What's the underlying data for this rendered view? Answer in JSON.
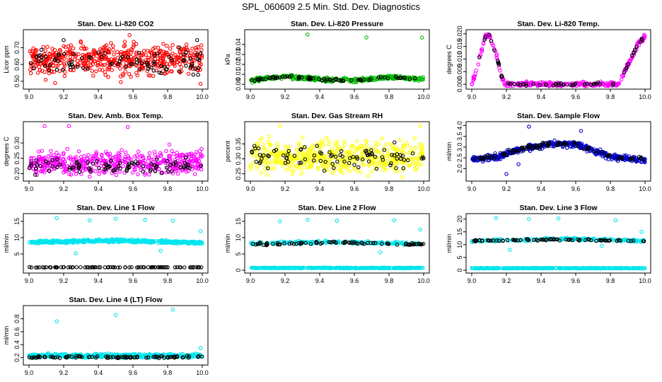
{
  "title": "SPL_060609  2.5 Min. Std. Dev. Diagnostics",
  "chart_data": [
    {
      "type": "scatter",
      "title": "Stan. Dev. Li-820 CO2",
      "ylabel": "Licor ppm",
      "xlim": [
        9.0,
        10.0
      ],
      "ylim": [
        0.47,
        0.79
      ],
      "xticks": [
        "9.0",
        "9.2",
        "9.4",
        "9.6",
        "9.8",
        "10.0"
      ],
      "yticks": [
        0.5,
        0.6,
        0.7
      ],
      "ytick_labels": [
        "0.50",
        "0.60",
        "0.70"
      ],
      "series": [
        {
          "name": "primary",
          "color": "#ff0000",
          "pattern": "noise",
          "base": 0.63,
          "spread": 0.075,
          "n": 520,
          "outliers": [
            [
              9.15,
              0.49
            ],
            [
              9.53,
              0.495
            ],
            [
              9.99,
              0.485
            ],
            [
              9.58,
              0.775
            ]
          ]
        },
        {
          "name": "secondary",
          "color": "#000000",
          "pattern": "noise",
          "base": 0.62,
          "spread": 0.06,
          "n": 90,
          "outliers": [
            [
              9.2,
              0.745
            ],
            [
              9.97,
              0.745
            ]
          ]
        }
      ]
    },
    {
      "type": "scatter",
      "title": "Stan. Dev. Li-820 Pressure",
      "ylabel": "kPa",
      "xlim": [
        9.0,
        10.0
      ],
      "ylim": [
        -0.002,
        0.052
      ],
      "xticks": [
        "9.0",
        "9.2",
        "9.4",
        "9.6",
        "9.8",
        "10.0"
      ],
      "yticks": [
        0.0,
        0.01,
        0.02,
        0.03,
        0.04
      ],
      "ytick_labels": [
        "0.00",
        "0.01",
        "0.02",
        "0.03",
        "0.04"
      ],
      "series": [
        {
          "name": "primary",
          "color": "#00bb00",
          "pattern": "wave",
          "points": [
            [
              9.0,
              0.004
            ],
            [
              9.2,
              0.008
            ],
            [
              9.4,
              0.005
            ],
            [
              9.6,
              0.004
            ],
            [
              9.8,
              0.007
            ],
            [
              10.0,
              0.005
            ]
          ],
          "spread": 0.0018,
          "n": 360,
          "outliers": [
            [
              9.33,
              0.05
            ],
            [
              9.67,
              0.047
            ],
            [
              9.99,
              0.047
            ]
          ]
        },
        {
          "name": "secondary",
          "color": "#000000",
          "pattern": "wave",
          "points": [
            [
              9.0,
              0.004
            ],
            [
              9.2,
              0.008
            ],
            [
              9.4,
              0.005
            ],
            [
              9.6,
              0.004
            ],
            [
              9.8,
              0.007
            ],
            [
              10.0,
              0.005
            ]
          ],
          "spread": 0.0012,
          "n": 70,
          "outliers": []
        }
      ]
    },
    {
      "type": "scatter",
      "title": "Stan. Dev. Li-820 Temp.",
      "ylabel": "degrees C",
      "xlim": [
        9.0,
        10.0
      ],
      "ylim": [
        -0.0008,
        0.0205
      ],
      "xticks": [
        "9.0",
        "9.2",
        "9.4",
        "9.6",
        "9.8",
        "10.0"
      ],
      "yticks": [
        0.0,
        0.005,
        0.01,
        0.015,
        0.02
      ],
      "ytick_labels": [
        "0.000",
        "0.005",
        "0.010",
        "0.015",
        "0.020"
      ],
      "series": [
        {
          "name": "primary",
          "color": "#ff00ff",
          "pattern": "path",
          "points": [
            [
              9.0,
              0.0
            ],
            [
              9.02,
              0.004
            ],
            [
              9.05,
              0.012
            ],
            [
              9.08,
              0.019
            ],
            [
              9.1,
              0.02
            ],
            [
              9.14,
              0.012
            ],
            [
              9.17,
              0.004
            ],
            [
              9.19,
              0.0
            ],
            [
              9.85,
              0.0
            ],
            [
              9.88,
              0.005
            ],
            [
              9.92,
              0.01
            ],
            [
              9.96,
              0.016
            ],
            [
              10.0,
              0.019
            ]
          ],
          "spread": 0.0008,
          "n": 320,
          "outliers": []
        },
        {
          "name": "secondary",
          "color": "#000000",
          "pattern": "path",
          "points": [
            [
              9.0,
              0.0
            ],
            [
              9.02,
              0.004
            ],
            [
              9.05,
              0.012
            ],
            [
              9.08,
              0.019
            ],
            [
              9.1,
              0.02
            ],
            [
              9.14,
              0.012
            ],
            [
              9.17,
              0.004
            ],
            [
              9.19,
              0.0
            ],
            [
              9.85,
              0.0
            ],
            [
              9.88,
              0.005
            ],
            [
              9.92,
              0.01
            ],
            [
              9.96,
              0.016
            ],
            [
              10.0,
              0.019
            ]
          ],
          "spread": 0.0005,
          "n": 60,
          "outliers": []
        }
      ]
    },
    {
      "type": "scatter",
      "title": "Stan. Dev. Amb. Box Temp.",
      "ylabel": "degrees C",
      "xlim": [
        9.0,
        10.0
      ],
      "ylim": [
        0.185,
        0.36
      ],
      "xticks": [
        "9.0",
        "9.2",
        "9.4",
        "9.6",
        "9.8",
        "10.0"
      ],
      "yticks": [
        0.2,
        0.25,
        0.3
      ],
      "ytick_labels": [
        "0.20",
        "0.25",
        "0.30"
      ],
      "series": [
        {
          "name": "primary",
          "color": "#ff00ff",
          "pattern": "noise",
          "base": 0.235,
          "spread": 0.032,
          "n": 480,
          "outliers": [
            [
              9.09,
              0.355
            ],
            [
              9.23,
              0.355
            ],
            [
              9.57,
              0.352
            ],
            [
              9.81,
              0.295
            ]
          ]
        },
        {
          "name": "secondary",
          "color": "#000000",
          "pattern": "noise",
          "base": 0.225,
          "spread": 0.022,
          "n": 90,
          "outliers": []
        }
      ]
    },
    {
      "type": "scatter",
      "title": "Stan. Dev. Gas Stream RH",
      "ylabel": "percent",
      "xlim": [
        9.0,
        10.0
      ],
      "ylim": [
        0.235,
        0.415
      ],
      "xticks": [
        "9.0",
        "9.2",
        "9.4",
        "9.6",
        "9.8",
        "10.0"
      ],
      "yticks": [
        0.25,
        0.3,
        0.35
      ],
      "ytick_labels": [
        "0.25",
        "0.30",
        "0.35"
      ],
      "series": [
        {
          "name": "primary",
          "color": "#ffff00",
          "pattern": "noise",
          "base": 0.305,
          "spread": 0.045,
          "n": 480,
          "outliers": [
            [
              9.17,
              0.41
            ],
            [
              9.98,
              0.41
            ]
          ]
        },
        {
          "name": "secondary",
          "color": "#000000",
          "pattern": "noise",
          "base": 0.305,
          "spread": 0.035,
          "n": 90,
          "outliers": []
        }
      ]
    },
    {
      "type": "scatter",
      "title": "Stan. Dev. Sample Flow",
      "ylabel": "ml/min",
      "xlim": [
        9.0,
        10.0
      ],
      "ylim": [
        1.55,
        4.05
      ],
      "xticks": [
        "9.0",
        "9.2",
        "9.4",
        "9.6",
        "9.8",
        "10.0"
      ],
      "yticks": [
        2.0,
        2.5,
        3.0,
        3.5,
        4.0
      ],
      "ytick_labels": [
        "2.0",
        "2.5",
        "3.0",
        "3.5",
        "4.0"
      ],
      "series": [
        {
          "name": "primary",
          "color": "#0000cc",
          "pattern": "wave",
          "points": [
            [
              9.0,
              2.4
            ],
            [
              9.15,
              2.55
            ],
            [
              9.3,
              2.95
            ],
            [
              9.45,
              3.15
            ],
            [
              9.6,
              3.15
            ],
            [
              9.7,
              2.85
            ],
            [
              9.8,
              2.55
            ],
            [
              10.0,
              2.4
            ]
          ],
          "spread": 0.12,
          "n": 420,
          "outliers": [
            [
              9.33,
              3.95
            ],
            [
              9.2,
              1.75
            ],
            [
              9.63,
              3.75
            ],
            [
              9.27,
              2.2
            ]
          ]
        },
        {
          "name": "secondary",
          "color": "#000000",
          "pattern": "wave",
          "points": [
            [
              9.0,
              2.4
            ],
            [
              9.15,
              2.55
            ],
            [
              9.3,
              2.95
            ],
            [
              9.45,
              3.15
            ],
            [
              9.6,
              3.15
            ],
            [
              9.7,
              2.85
            ],
            [
              9.8,
              2.55
            ],
            [
              10.0,
              2.4
            ]
          ],
          "spread": 0.1,
          "n": 90,
          "outliers": []
        }
      ]
    },
    {
      "type": "scatter",
      "title": "Stan. Dev. Line 1 Flow",
      "ylabel": "ml/min",
      "xlim": [
        9.0,
        10.0
      ],
      "ylim": [
        0.0,
        16.5
      ],
      "xticks": [
        "9.0",
        "9.2",
        "9.4",
        "9.6",
        "9.8",
        "10.0"
      ],
      "yticks": [
        5,
        10,
        15
      ],
      "ytick_labels": [
        "5",
        "10",
        "15"
      ],
      "series": [
        {
          "name": "primary",
          "color": "#00e5ee",
          "pattern": "wave",
          "points": [
            [
              9.0,
              8.6
            ],
            [
              9.5,
              9.1
            ],
            [
              10.0,
              8.4
            ]
          ],
          "spread": 0.35,
          "n": 480,
          "outliers": [
            [
              9.16,
              16.0
            ],
            [
              9.35,
              15.3
            ],
            [
              9.5,
              15.8
            ],
            [
              9.67,
              15.5
            ],
            [
              9.83,
              15.2
            ],
            [
              9.99,
              12.0
            ],
            [
              9.27,
              5.2
            ],
            [
              9.76,
              6.0
            ]
          ]
        },
        {
          "name": "secondary",
          "color": "#000000",
          "pattern": "wave",
          "points": [
            [
              9.0,
              0.9
            ],
            [
              10.0,
              0.9
            ]
          ],
          "spread": 0.05,
          "n": 95,
          "outliers": []
        }
      ]
    },
    {
      "type": "scatter",
      "title": "Stan. Dev. Line 2 Flow",
      "ylabel": "ml/min",
      "xlim": [
        9.0,
        10.0
      ],
      "ylim": [
        0.0,
        16.5
      ],
      "xticks": [
        "9.0",
        "9.2",
        "9.4",
        "9.6",
        "9.8",
        "10.0"
      ],
      "yticks": [
        0,
        5,
        10,
        15
      ],
      "ytick_labels": [
        "0",
        "5",
        "10",
        "15"
      ],
      "series": [
        {
          "name": "primary",
          "color": "#00e5ee",
          "pattern": "wave",
          "points": [
            [
              9.0,
              0.7
            ],
            [
              10.0,
              0.7
            ]
          ],
          "spread": 0.1,
          "n": 420,
          "outliers": []
        },
        {
          "name": "cyan-upper",
          "color": "#00e5ee",
          "pattern": "wave",
          "points": [
            [
              9.0,
              8.3
            ],
            [
              9.5,
              8.6
            ],
            [
              10.0,
              8.1
            ]
          ],
          "spread": 0.35,
          "n": 200,
          "outliers": [
            [
              9.17,
              15.0
            ],
            [
              9.33,
              15.5
            ],
            [
              9.5,
              15.2
            ],
            [
              9.83,
              15.3
            ],
            [
              9.98,
              12.5
            ],
            [
              9.75,
              5.5
            ]
          ]
        },
        {
          "name": "secondary",
          "color": "#000000",
          "pattern": "wave",
          "points": [
            [
              9.0,
              8.0
            ],
            [
              9.5,
              8.5
            ],
            [
              10.0,
              8.0
            ]
          ],
          "spread": 0.3,
          "n": 80,
          "outliers": []
        }
      ]
    },
    {
      "type": "scatter",
      "title": "Stan. Dev. Line 3 Flow",
      "ylabel": "ml/min",
      "xlim": [
        9.0,
        10.0
      ],
      "ylim": [
        0.0,
        21.0
      ],
      "xticks": [
        "9.0",
        "9.2",
        "9.4",
        "9.6",
        "9.8",
        "10.0"
      ],
      "yticks": [
        0,
        5,
        10,
        15,
        20
      ],
      "ytick_labels": [
        "0",
        "5",
        "10",
        "15",
        "20"
      ],
      "series": [
        {
          "name": "primary",
          "color": "#00e5ee",
          "pattern": "wave",
          "points": [
            [
              9.0,
              0.8
            ],
            [
              10.0,
              0.8
            ]
          ],
          "spread": 0.1,
          "n": 420,
          "outliers": []
        },
        {
          "name": "cyan-upper",
          "color": "#00e5ee",
          "pattern": "wave",
          "points": [
            [
              9.0,
              11.5
            ],
            [
              9.5,
              12.3
            ],
            [
              10.0,
              11.5
            ]
          ],
          "spread": 0.4,
          "n": 200,
          "outliers": [
            [
              9.14,
              20.5
            ],
            [
              9.33,
              20.0
            ],
            [
              9.5,
              20.2
            ],
            [
              9.83,
              19.5
            ],
            [
              9.98,
              15.0
            ],
            [
              9.22,
              8.0
            ],
            [
              9.75,
              9.5
            ]
          ]
        },
        {
          "name": "secondary",
          "color": "#000000",
          "pattern": "wave",
          "points": [
            [
              9.0,
              11.5
            ],
            [
              9.5,
              12.0
            ],
            [
              10.0,
              11.5
            ]
          ],
          "spread": 0.3,
          "n": 80,
          "outliers": []
        }
      ]
    },
    {
      "type": "scatter",
      "title": "Stan. Dev. Line 4 (LT) Flow",
      "ylabel": "ml/min",
      "xlim": [
        9.0,
        10.0
      ],
      "ylim": [
        0.13,
        0.96
      ],
      "xticks": [
        "9.0",
        "9.2",
        "9.4",
        "9.6",
        "9.8",
        "10.0"
      ],
      "yticks": [
        0.2,
        0.4,
        0.6,
        0.8
      ],
      "ytick_labels": [
        "0.2",
        "0.4",
        "0.6",
        "0.8"
      ],
      "series": [
        {
          "name": "primary",
          "color": "#00e5ee",
          "pattern": "wave",
          "points": [
            [
              9.0,
              0.23
            ],
            [
              10.0,
              0.23
            ]
          ],
          "spread": 0.025,
          "n": 460,
          "outliers": [
            [
              9.16,
              0.76
            ],
            [
              9.5,
              0.86
            ],
            [
              9.83,
              0.94
            ],
            [
              9.99,
              0.35
            ]
          ]
        },
        {
          "name": "secondary",
          "color": "#000000",
          "pattern": "wave",
          "points": [
            [
              9.0,
              0.21
            ],
            [
              10.0,
              0.21
            ]
          ],
          "spread": 0.015,
          "n": 95,
          "outliers": []
        }
      ]
    }
  ]
}
